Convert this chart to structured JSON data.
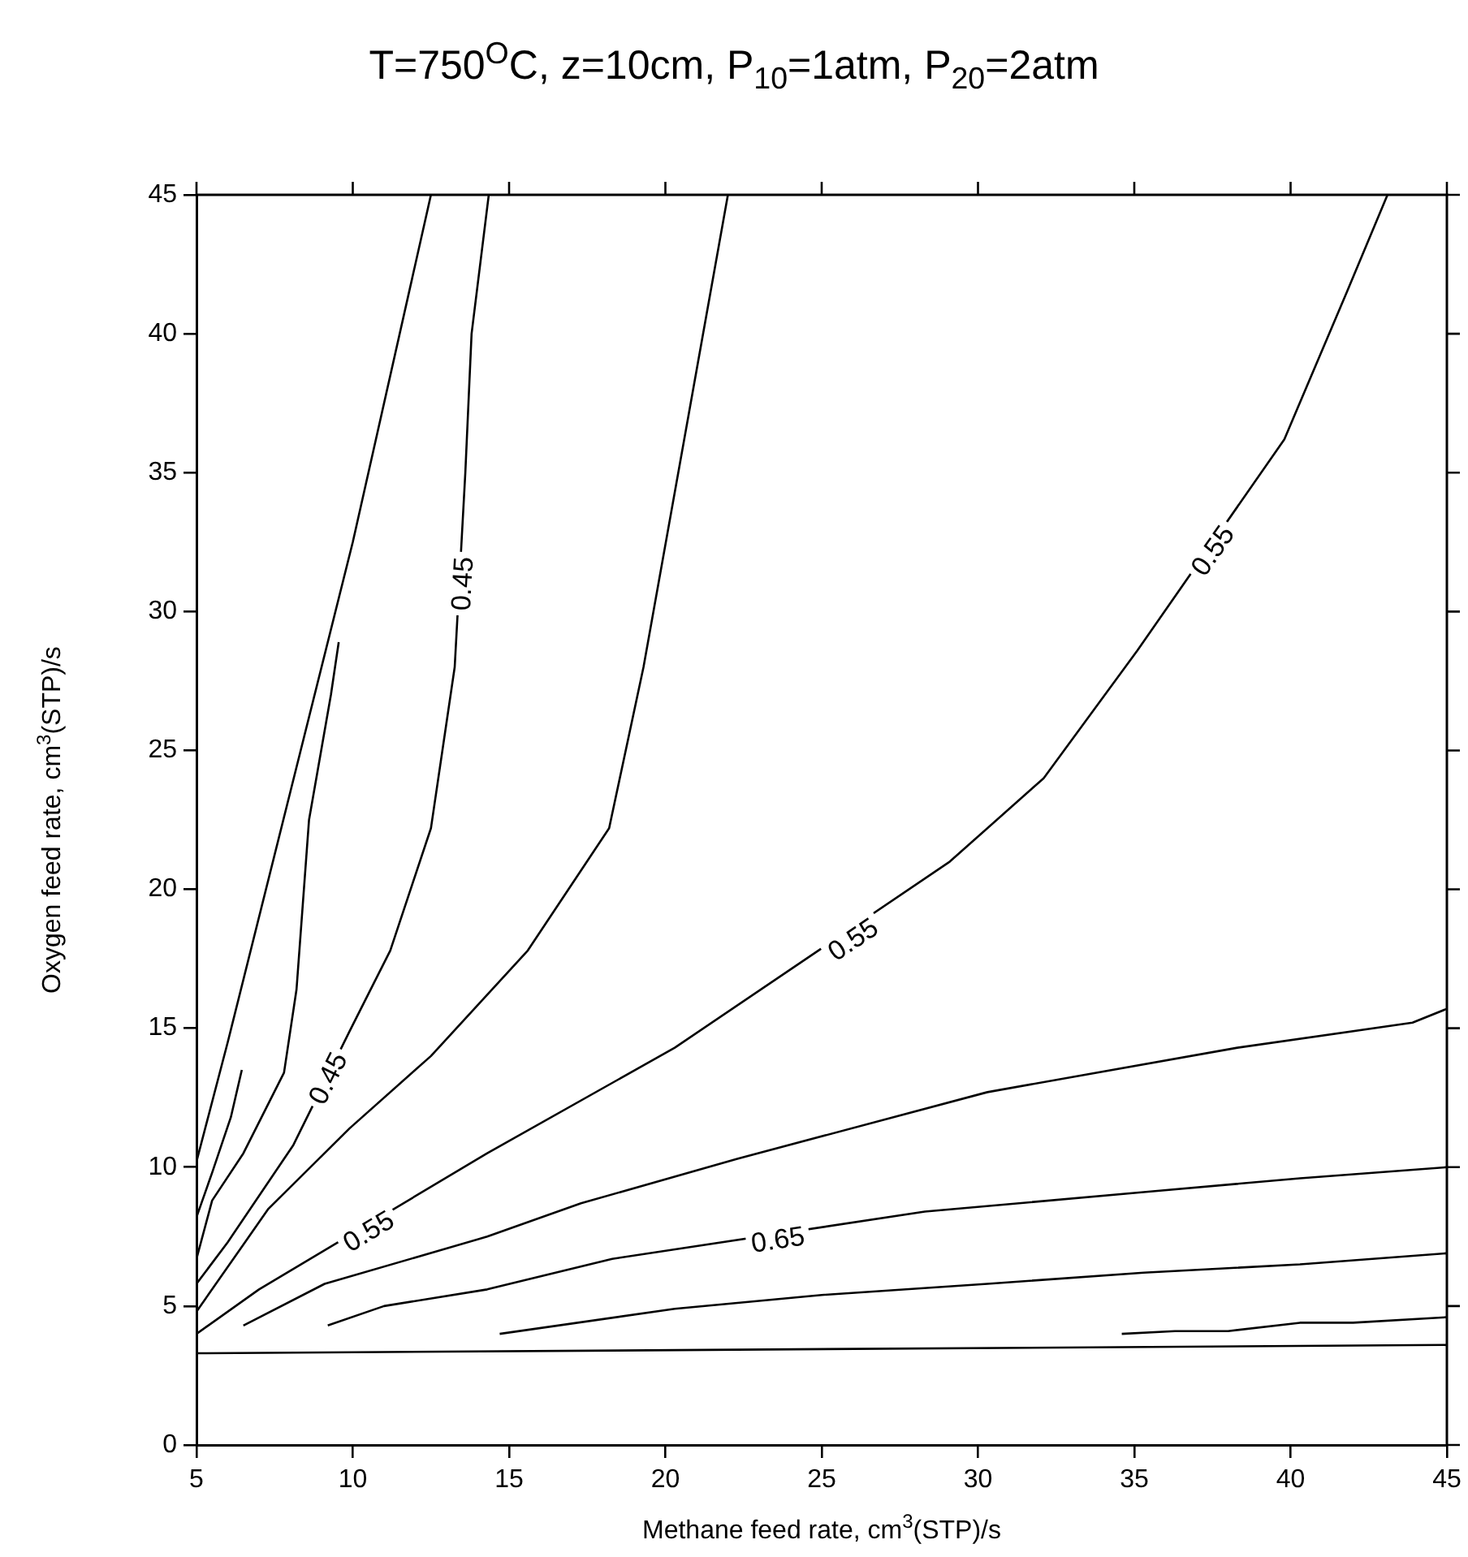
{
  "chart_data": {
    "type": "line",
    "title": "T=750$^{O}$C, z=10cm, P$_{10}$=1atm, P$_{20}$=2atm",
    "xlabel": "Methane feed rate, cm$^{3}$(STP)/s",
    "ylabel": "Oxygen feed rate, cm$^{3}$(STP)/s",
    "xlim": [
      5,
      45
    ],
    "xticks": [
      5,
      10,
      15,
      20,
      25,
      30,
      35,
      40,
      45
    ],
    "ylim": [
      0,
      45
    ],
    "yticks": [
      0,
      5,
      10,
      15,
      20,
      25,
      30,
      35,
      40,
      45
    ],
    "grid": false,
    "legend": false,
    "marker": "none",
    "line_style": "solid",
    "series": [
      {
        "color": "#000000",
        "x": [
          5,
          6,
          8,
          10,
          12.5
        ],
        "values": [
          10.2,
          14.5,
          23.5,
          32.5,
          45
        ]
      },
      {
        "color": "#000000",
        "x": [
          5,
          5.5,
          6.1,
          6.45
        ],
        "values": [
          8.2,
          9.8,
          11.8,
          13.5
        ]
      },
      {
        "color": "#000000",
        "x": [
          5,
          5.5,
          6.5,
          7.8,
          8.2,
          8.6,
          9.3,
          9.55
        ],
        "values": [
          6.7,
          8.8,
          10.5,
          13.4,
          16.4,
          22.5,
          27,
          28.9
        ]
      },
      {
        "color": "#000000",
        "x": [
          5,
          6,
          8.1,
          9.9,
          11.2,
          12.5,
          13.26,
          13.6,
          13.8,
          14.35
        ],
        "values": [
          5.8,
          7.3,
          10.8,
          14.9,
          17.8,
          22.2,
          28,
          35,
          40,
          45
        ]
      },
      {
        "color": "#000000",
        "x": [
          5,
          7.3,
          9.9,
          12.5,
          15.6,
          18.2,
          19.3,
          21,
          22
        ],
        "values": [
          4.8,
          8.5,
          11.4,
          14,
          17.8,
          22.2,
          28,
          38.7,
          45
        ]
      },
      {
        "color": "#000000",
        "x": [
          5,
          7,
          14.3,
          20.3,
          29.1,
          32.1,
          35.1,
          39.8,
          41.8,
          43.1
        ],
        "values": [
          4,
          5.6,
          10.5,
          14.3,
          21,
          24,
          28.6,
          36.2,
          41.5,
          45
        ]
      },
      {
        "color": "#000000",
        "x": [
          6.5,
          9.1,
          14.3,
          17.3,
          22.3,
          30.3,
          38.3,
          43.9,
          45
        ],
        "values": [
          4.3,
          5.8,
          7.5,
          8.7,
          10.3,
          12.7,
          14.3,
          15.2,
          15.7
        ]
      },
      {
        "color": "#000000",
        "x": [
          9.2,
          11,
          14.3,
          18.3,
          28.3,
          35.3,
          40.3,
          45
        ],
        "values": [
          4.3,
          5,
          5.6,
          6.7,
          8.4,
          9.1,
          9.6,
          10
        ]
      },
      {
        "color": "#000000",
        "x": [
          14.7,
          20.3,
          25,
          30.3,
          35.3,
          40.3,
          45
        ],
        "values": [
          4,
          4.9,
          5.4,
          5.8,
          6.2,
          6.5,
          6.9
        ]
      },
      {
        "color": "#000000",
        "x": [
          34.6,
          36.3,
          38,
          40.3,
          42,
          45
        ],
        "values": [
          4,
          4.1,
          4.1,
          4.4,
          4.4,
          4.6
        ]
      },
      {
        "color": "#000000",
        "x": [
          5,
          45
        ],
        "values": [
          3.3,
          3.6
        ]
      }
    ],
    "annotations": [
      {
        "text": "0.45",
        "x": 13.5,
        "y": 31
      },
      {
        "text": "0.45",
        "x": 9.2,
        "y": 13.2
      },
      {
        "text": "0.55",
        "x": 10.5,
        "y": 7.7
      },
      {
        "text": "0.55",
        "x": 26,
        "y": 18.2
      },
      {
        "text": "0.55",
        "x": 37.5,
        "y": 32.2
      },
      {
        "text": "0.65",
        "x": 23.6,
        "y": 7.4
      }
    ]
  }
}
